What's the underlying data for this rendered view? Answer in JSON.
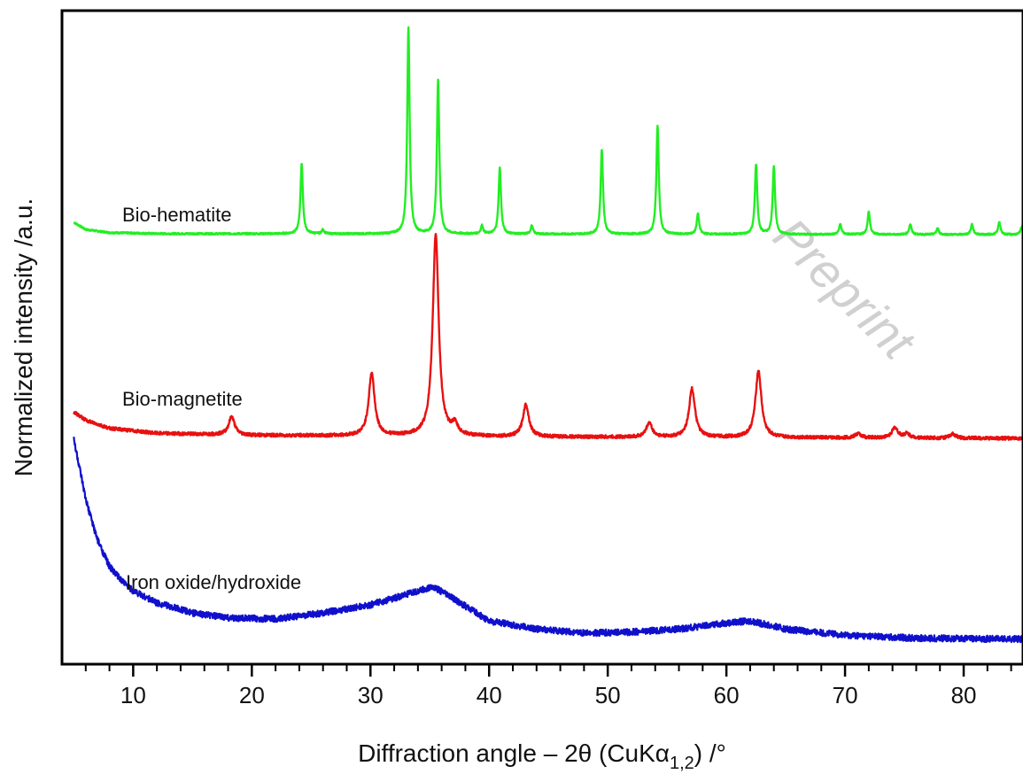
{
  "chart_data": {
    "type": "line",
    "xlabel_parts": {
      "prefix": "Diffraction angle – 2θ (CuKα",
      "subscript": "1,2",
      "suffix": ") /°"
    },
    "ylabel": "Normalized intensity /a.u.",
    "xlim": [
      4,
      85
    ],
    "x_ticks": [
      10,
      20,
      30,
      40,
      50,
      60,
      70,
      80
    ],
    "x_minor_step": 2,
    "y_ticks_shown": false,
    "grid": false,
    "legend": "none",
    "watermark": "Preprint",
    "series": [
      {
        "name": "Bio-hematite",
        "color": "#22ee22",
        "baseline": 0.0,
        "baseline_points": [
          [
            5,
            0.06
          ],
          [
            6,
            0.025
          ],
          [
            8,
            0.01
          ],
          [
            12,
            0.005
          ],
          [
            85,
            0.0
          ]
        ],
        "peaks": [
          {
            "x": 24.2,
            "h": 0.34,
            "w": 0.12
          },
          {
            "x": 26.0,
            "h": 0.02,
            "w": 0.12
          },
          {
            "x": 33.2,
            "h": 1.0,
            "w": 0.12
          },
          {
            "x": 35.7,
            "h": 0.75,
            "w": 0.12
          },
          {
            "x": 39.4,
            "h": 0.04,
            "w": 0.12
          },
          {
            "x": 40.9,
            "h": 0.32,
            "w": 0.12
          },
          {
            "x": 43.6,
            "h": 0.04,
            "w": 0.12
          },
          {
            "x": 49.5,
            "h": 0.41,
            "w": 0.12
          },
          {
            "x": 54.2,
            "h": 0.53,
            "w": 0.12
          },
          {
            "x": 57.6,
            "h": 0.1,
            "w": 0.12
          },
          {
            "x": 62.5,
            "h": 0.34,
            "w": 0.12
          },
          {
            "x": 64.0,
            "h": 0.33,
            "w": 0.12
          },
          {
            "x": 69.6,
            "h": 0.05,
            "w": 0.12
          },
          {
            "x": 72.0,
            "h": 0.11,
            "w": 0.12
          },
          {
            "x": 75.5,
            "h": 0.05,
            "w": 0.12
          },
          {
            "x": 77.8,
            "h": 0.03,
            "w": 0.12
          },
          {
            "x": 80.7,
            "h": 0.05,
            "w": 0.12
          },
          {
            "x": 83.0,
            "h": 0.06,
            "w": 0.12
          },
          {
            "x": 84.9,
            "h": 0.04,
            "w": 0.12
          }
        ],
        "noise": 0.004
      },
      {
        "name": "Bio-magnetite",
        "color": "#e81010",
        "baseline_points": [
          [
            5,
            0.13
          ],
          [
            6,
            0.09
          ],
          [
            8,
            0.05
          ],
          [
            12,
            0.025
          ],
          [
            20,
            0.015
          ],
          [
            40,
            0.008
          ],
          [
            85,
            0.0
          ]
        ],
        "peaks": [
          {
            "x": 18.3,
            "h": 0.09,
            "w": 0.3
          },
          {
            "x": 30.1,
            "h": 0.31,
            "w": 0.3
          },
          {
            "x": 35.5,
            "h": 1.0,
            "w": 0.3
          },
          {
            "x": 37.1,
            "h": 0.05,
            "w": 0.3
          },
          {
            "x": 43.1,
            "h": 0.16,
            "w": 0.3
          },
          {
            "x": 53.5,
            "h": 0.07,
            "w": 0.3
          },
          {
            "x": 57.1,
            "h": 0.24,
            "w": 0.3
          },
          {
            "x": 62.7,
            "h": 0.33,
            "w": 0.3
          },
          {
            "x": 71.1,
            "h": 0.02,
            "w": 0.3
          },
          {
            "x": 74.2,
            "h": 0.05,
            "w": 0.3
          },
          {
            "x": 75.2,
            "h": 0.02,
            "w": 0.3
          },
          {
            "x": 79.1,
            "h": 0.02,
            "w": 0.3
          }
        ],
        "noise": 0.008
      },
      {
        "name": "Iron oxide/hydroxide",
        "color": "#1010cc",
        "baseline_points": [
          [
            5,
            1.0
          ],
          [
            5.5,
            0.85
          ],
          [
            6,
            0.7
          ],
          [
            7,
            0.5
          ],
          [
            8,
            0.37
          ],
          [
            9,
            0.3
          ],
          [
            10,
            0.25
          ],
          [
            12,
            0.19
          ],
          [
            15,
            0.14
          ],
          [
            18,
            0.115
          ],
          [
            22,
            0.11
          ],
          [
            26,
            0.14
          ],
          [
            30,
            0.18
          ],
          [
            33,
            0.23
          ],
          [
            35.3,
            0.27
          ],
          [
            37,
            0.21
          ],
          [
            40,
            0.1
          ],
          [
            44,
            0.06
          ],
          [
            48,
            0.04
          ],
          [
            52,
            0.045
          ],
          [
            56,
            0.06
          ],
          [
            60,
            0.09
          ],
          [
            62,
            0.1
          ],
          [
            65,
            0.06
          ],
          [
            70,
            0.03
          ],
          [
            76,
            0.015
          ],
          [
            85,
            0.01
          ]
        ],
        "peaks": [],
        "noise": 0.016
      }
    ],
    "series_label_positions_note": "labels placed at left of each trace"
  }
}
